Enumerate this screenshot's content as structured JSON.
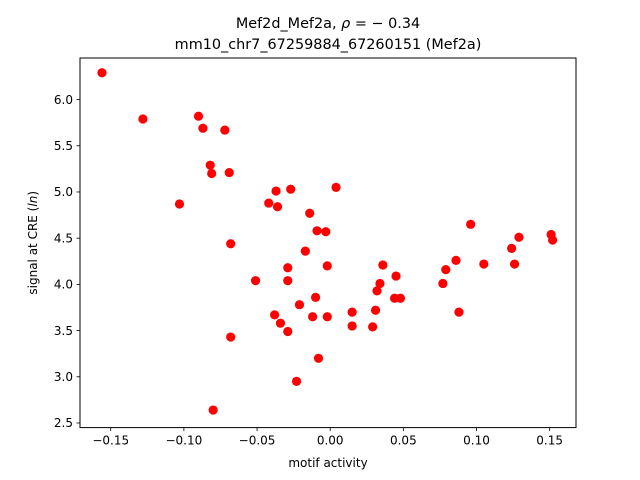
{
  "chart_data": {
    "type": "scatter",
    "title_line1_prefix": "Mef2d_Mef2a, ",
    "title_line1_rho": "ρ",
    "title_line1_suffix": " = − 0.34",
    "title_line2": "mm10_chr7_67259884_67260151 (Mef2a)",
    "xlabel": "motif activity",
    "ylabel_prefix": "signal at CRE (",
    "ylabel_italic": "ln",
    "ylabel_suffix": ")",
    "xlim": [
      -0.171,
      0.168
    ],
    "ylim": [
      2.45,
      6.45
    ],
    "xticks": [
      -0.15,
      -0.1,
      -0.05,
      0.0,
      0.05,
      0.1,
      0.15
    ],
    "xtick_labels": [
      "−0.15",
      "−0.10",
      "−0.05",
      "0.00",
      "0.05",
      "0.10",
      "0.15"
    ],
    "yticks": [
      2.5,
      3.0,
      3.5,
      4.0,
      4.5,
      5.0,
      5.5,
      6.0
    ],
    "ytick_labels": [
      "2.5",
      "3.0",
      "3.5",
      "4.0",
      "4.5",
      "5.0",
      "5.5",
      "6.0"
    ],
    "grid": false,
    "marker_color": "#ff0000",
    "points": [
      {
        "x": -0.156,
        "y": 6.29
      },
      {
        "x": -0.128,
        "y": 5.79
      },
      {
        "x": -0.103,
        "y": 4.87
      },
      {
        "x": -0.09,
        "y": 5.82
      },
      {
        "x": -0.087,
        "y": 5.69
      },
      {
        "x": -0.082,
        "y": 5.29
      },
      {
        "x": -0.081,
        "y": 5.2
      },
      {
        "x": -0.08,
        "y": 2.64
      },
      {
        "x": -0.072,
        "y": 5.67
      },
      {
        "x": -0.069,
        "y": 5.21
      },
      {
        "x": -0.068,
        "y": 4.44
      },
      {
        "x": -0.068,
        "y": 3.43
      },
      {
        "x": -0.051,
        "y": 4.04
      },
      {
        "x": -0.042,
        "y": 4.88
      },
      {
        "x": -0.038,
        "y": 3.67
      },
      {
        "x": -0.037,
        "y": 5.01
      },
      {
        "x": -0.036,
        "y": 4.84
      },
      {
        "x": -0.034,
        "y": 3.58
      },
      {
        "x": -0.029,
        "y": 4.18
      },
      {
        "x": -0.029,
        "y": 4.04
      },
      {
        "x": -0.029,
        "y": 3.49
      },
      {
        "x": -0.027,
        "y": 5.03
      },
      {
        "x": -0.023,
        "y": 2.95
      },
      {
        "x": -0.021,
        "y": 3.78
      },
      {
        "x": -0.017,
        "y": 4.36
      },
      {
        "x": -0.014,
        "y": 4.77
      },
      {
        "x": -0.012,
        "y": 3.65
      },
      {
        "x": -0.01,
        "y": 3.86
      },
      {
        "x": -0.009,
        "y": 4.58
      },
      {
        "x": -0.008,
        "y": 3.2
      },
      {
        "x": -0.003,
        "y": 4.57
      },
      {
        "x": -0.002,
        "y": 4.2
      },
      {
        "x": -0.002,
        "y": 3.65
      },
      {
        "x": 0.004,
        "y": 5.05
      },
      {
        "x": 0.015,
        "y": 3.7
      },
      {
        "x": 0.015,
        "y": 3.55
      },
      {
        "x": 0.029,
        "y": 3.54
      },
      {
        "x": 0.031,
        "y": 3.72
      },
      {
        "x": 0.032,
        "y": 3.93
      },
      {
        "x": 0.034,
        "y": 4.01
      },
      {
        "x": 0.036,
        "y": 4.21
      },
      {
        "x": 0.044,
        "y": 3.85
      },
      {
        "x": 0.045,
        "y": 4.09
      },
      {
        "x": 0.048,
        "y": 3.85
      },
      {
        "x": 0.077,
        "y": 4.01
      },
      {
        "x": 0.079,
        "y": 4.16
      },
      {
        "x": 0.086,
        "y": 4.26
      },
      {
        "x": 0.088,
        "y": 3.7
      },
      {
        "x": 0.096,
        "y": 4.65
      },
      {
        "x": 0.105,
        "y": 4.22
      },
      {
        "x": 0.124,
        "y": 4.39
      },
      {
        "x": 0.126,
        "y": 4.22
      },
      {
        "x": 0.129,
        "y": 4.51
      },
      {
        "x": 0.151,
        "y": 4.54
      },
      {
        "x": 0.152,
        "y": 4.48
      }
    ]
  }
}
